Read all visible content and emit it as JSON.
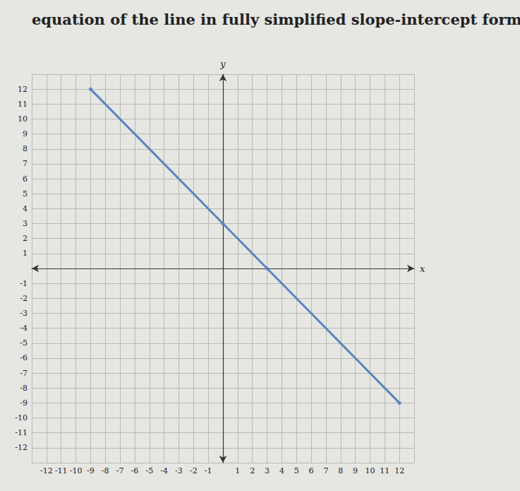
{
  "chart_data": {
    "type": "line",
    "title": "equation of the line in fully simplified slope-intercept form.",
    "x_label": "x",
    "y_label": "y",
    "x": [
      -9,
      0,
      3,
      12
    ],
    "values": [
      12,
      3,
      0,
      -9
    ],
    "color": "#5b84be",
    "marker": "circle",
    "xlim": [
      -13,
      13
    ],
    "ylim": [
      -13,
      13
    ],
    "xticks": [
      -12,
      -11,
      -10,
      -9,
      -8,
      -7,
      -6,
      -5,
      -4,
      -3,
      -2,
      -1,
      1,
      2,
      3,
      4,
      5,
      6,
      7,
      8,
      9,
      10,
      11,
      12
    ],
    "yticks": [
      -12,
      -11,
      -10,
      -9,
      -8,
      -7,
      -6,
      -5,
      -4,
      -3,
      -2,
      -1,
      1,
      2,
      3,
      4,
      5,
      6,
      7,
      8,
      9,
      10,
      11,
      12
    ],
    "grid": true
  }
}
